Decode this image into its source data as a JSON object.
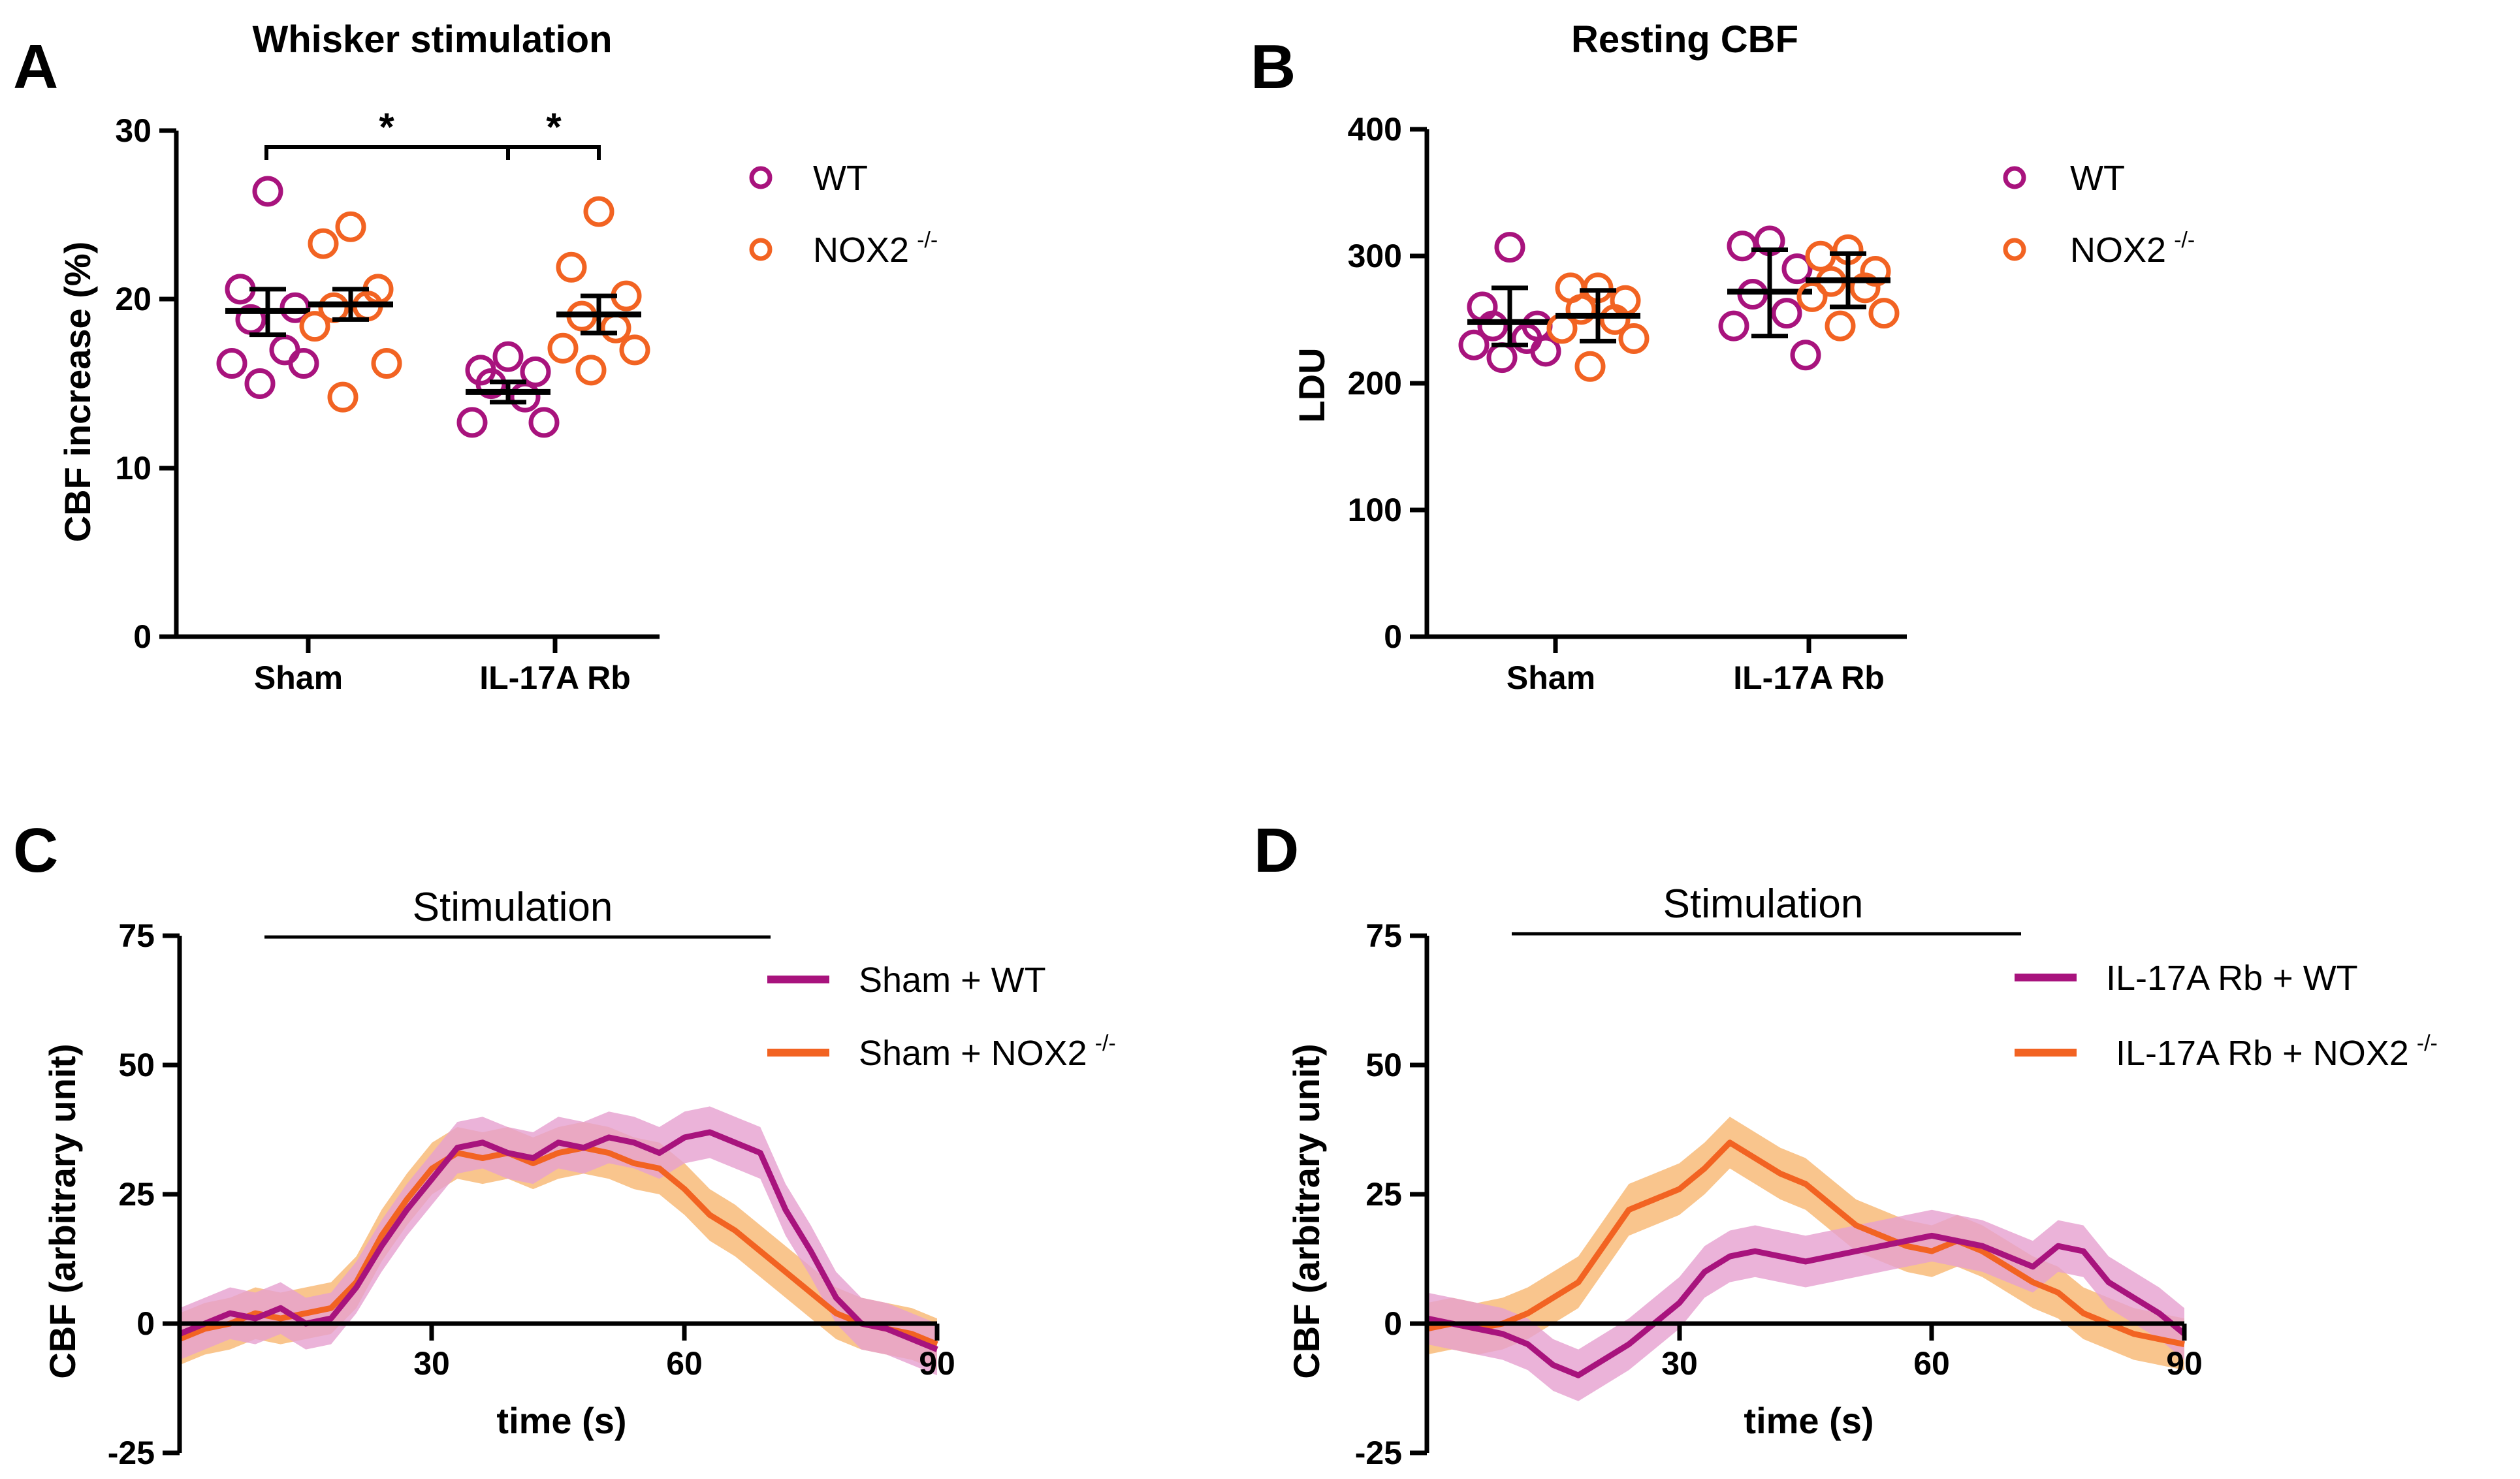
{
  "figure": {
    "colors": {
      "wt": "#a8137d",
      "nox2": "#f26322",
      "wt_band": "#e6a0cf",
      "nox2_band": "#f8b770"
    },
    "panels": {
      "A": {
        "letter": "A",
        "title": "Whisker stimulation"
      },
      "B": {
        "letter": "B",
        "title": "Resting CBF"
      },
      "C": {
        "letter": "C",
        "stim_label": "Stimulation"
      },
      "D": {
        "letter": "D",
        "stim_label": "Stimulation"
      }
    }
  },
  "chart_data": [
    {
      "id": "A",
      "type": "scatter",
      "title": "Whisker stimulation",
      "ylabel": "CBF increase  (%)",
      "xlabel": "",
      "ylim": [
        0,
        30
      ],
      "yticks": [
        0,
        10,
        20,
        30
      ],
      "categories": [
        "Sham",
        "IL-17A Rb"
      ],
      "legend": {
        "position": "top-right",
        "entries": [
          "WT",
          "NOX2",
          "-/-"
        ]
      },
      "significance": [
        {
          "groups": [
            "Sham",
            "IL-17A Rb"
          ],
          "label": "*"
        },
        {
          "groups": [
            "IL-17A Rb WT",
            "IL-17A Rb NOX2"
          ],
          "label": "*"
        }
      ],
      "series": [
        {
          "name": "WT",
          "groups": [
            {
              "category": "Sham",
              "mean": 19.3,
              "sem_low": 17.9,
              "sem_high": 20.6,
              "points": [
                26.4,
                20.6,
                19.5,
                18.8,
                17.0,
                16.2,
                16.2,
                15.0
              ]
            },
            {
              "category": "IL-17A Rb",
              "mean": 14.5,
              "sem_low": 13.9,
              "sem_high": 15.1,
              "points": [
                16.6,
                15.8,
                15.7,
                15.0,
                14.2,
                12.7,
                12.7
              ]
            }
          ]
        },
        {
          "name": "NOX2 -/-",
          "groups": [
            {
              "category": "Sham",
              "mean": 19.7,
              "sem_low": 18.8,
              "sem_high": 20.6,
              "points": [
                24.3,
                23.3,
                20.6,
                19.5,
                19.6,
                18.4,
                16.2,
                14.2
              ]
            },
            {
              "category": "IL-17A Rb",
              "mean": 19.1,
              "sem_low": 18.0,
              "sem_high": 20.2,
              "points": [
                25.2,
                21.9,
                20.2,
                19.0,
                18.3,
                17.1,
                17.0,
                15.8
              ]
            }
          ]
        }
      ]
    },
    {
      "id": "B",
      "type": "scatter",
      "title": "Resting CBF",
      "ylabel": "LDU",
      "xlabel": "",
      "ylim": [
        0,
        400
      ],
      "yticks": [
        0,
        100,
        200,
        300,
        400
      ],
      "categories": [
        "Sham",
        "IL-17A Rb"
      ],
      "legend": {
        "position": "top-right",
        "entries": [
          "WT",
          "NOX2",
          "-/-"
        ]
      },
      "series": [
        {
          "name": "WT",
          "groups": [
            {
              "category": "Sham",
              "mean": 248,
              "err_low": 230,
              "err_high": 275,
              "points": [
                307,
                260,
                245,
                245,
                235,
                230,
                225,
                220
              ]
            },
            {
              "category": "IL-17A Rb",
              "mean": 272,
              "err_low": 237,
              "err_high": 305,
              "points": [
                312,
                308,
                290,
                270,
                255,
                245,
                222
              ]
            }
          ]
        },
        {
          "name": "NOX2 -/-",
          "groups": [
            {
              "category": "Sham",
              "mean": 253,
              "err_low": 233,
              "err_high": 273,
              "points": [
                275,
                275,
                265,
                258,
                250,
                243,
                235,
                213
              ]
            },
            {
              "category": "IL-17A Rb",
              "mean": 281,
              "err_low": 260,
              "err_high": 302,
              "points": [
                305,
                300,
                288,
                280,
                275,
                268,
                255,
                245
              ]
            }
          ]
        }
      ]
    },
    {
      "id": "C",
      "type": "line",
      "title": "",
      "xlabel": "time (s)",
      "ylabel": "CBF (arbitrary unit)",
      "xlim": [
        0,
        90
      ],
      "ylim": [
        -25,
        75
      ],
      "xticks": [
        30,
        60,
        90
      ],
      "yticks": [
        -25,
        0,
        25,
        50,
        75
      ],
      "stimulation": {
        "label": "Stimulation",
        "start": 10,
        "end": 71
      },
      "legend": {
        "position": "top-right",
        "entries": [
          "Sham + WT",
          "Sham + NOX2",
          "-/-"
        ]
      },
      "x": [
        0,
        3,
        6,
        9,
        12,
        15,
        18,
        21,
        24,
        27,
        30,
        33,
        36,
        39,
        42,
        45,
        48,
        51,
        54,
        57,
        60,
        63,
        66,
        69,
        72,
        75,
        78,
        81,
        84,
        87,
        90
      ],
      "series": [
        {
          "name": "Sham + WT",
          "sem": 5,
          "values": [
            -2,
            0,
            2,
            1,
            3,
            0,
            1,
            7,
            15,
            22,
            28,
            34,
            35,
            33,
            32,
            35,
            34,
            36,
            35,
            33,
            36,
            37,
            35,
            33,
            22,
            14,
            5,
            0,
            -1,
            -3,
            -5
          ]
        },
        {
          "name": "Sham + NOX2 -/-",
          "sem": 5,
          "values": [
            -3,
            -1,
            0,
            2,
            1,
            2,
            3,
            8,
            17,
            24,
            30,
            33,
            32,
            33,
            31,
            33,
            34,
            33,
            31,
            30,
            26,
            21,
            18,
            14,
            10,
            6,
            2,
            0,
            -1,
            -2,
            -4
          ]
        }
      ]
    },
    {
      "id": "D",
      "type": "line",
      "title": "",
      "xlabel": "time (s)",
      "ylabel": "CBF (arbitrary unit)",
      "xlim": [
        0,
        90
      ],
      "ylim": [
        -25,
        75
      ],
      "xticks": [
        30,
        60,
        90
      ],
      "yticks": [
        -25,
        0,
        25,
        50,
        75
      ],
      "stimulation": {
        "label": "Stimulation",
        "start": 10,
        "end": 71
      },
      "legend": {
        "position": "top-right",
        "entries": [
          "IL-17A Rb + WT",
          "IL-17A Rb + NOX2",
          "-/-"
        ]
      },
      "x": [
        0,
        3,
        6,
        9,
        12,
        15,
        18,
        21,
        24,
        27,
        30,
        33,
        36,
        39,
        42,
        45,
        48,
        51,
        54,
        57,
        60,
        63,
        66,
        69,
        72,
        75,
        78,
        81,
        84,
        87,
        90
      ],
      "series": [
        {
          "name": "IL-17A Rb + WT",
          "sem": 5,
          "values": [
            1,
            0,
            -1,
            -2,
            -4,
            -8,
            -10,
            -7,
            -4,
            0,
            4,
            10,
            13,
            14,
            13,
            12,
            13,
            14,
            15,
            16,
            17,
            16,
            15,
            13,
            11,
            15,
            14,
            8,
            5,
            2,
            -2
          ]
        },
        {
          "name": "IL-17A Rb + NOX2 -/-",
          "sem": 5,
          "values": [
            -1,
            0,
            -1,
            0,
            2,
            5,
            8,
            15,
            22,
            24,
            26,
            30,
            35,
            32,
            29,
            27,
            23,
            19,
            17,
            15,
            14,
            16,
            14,
            11,
            8,
            6,
            2,
            0,
            -2,
            -3,
            -4
          ]
        }
      ]
    }
  ]
}
